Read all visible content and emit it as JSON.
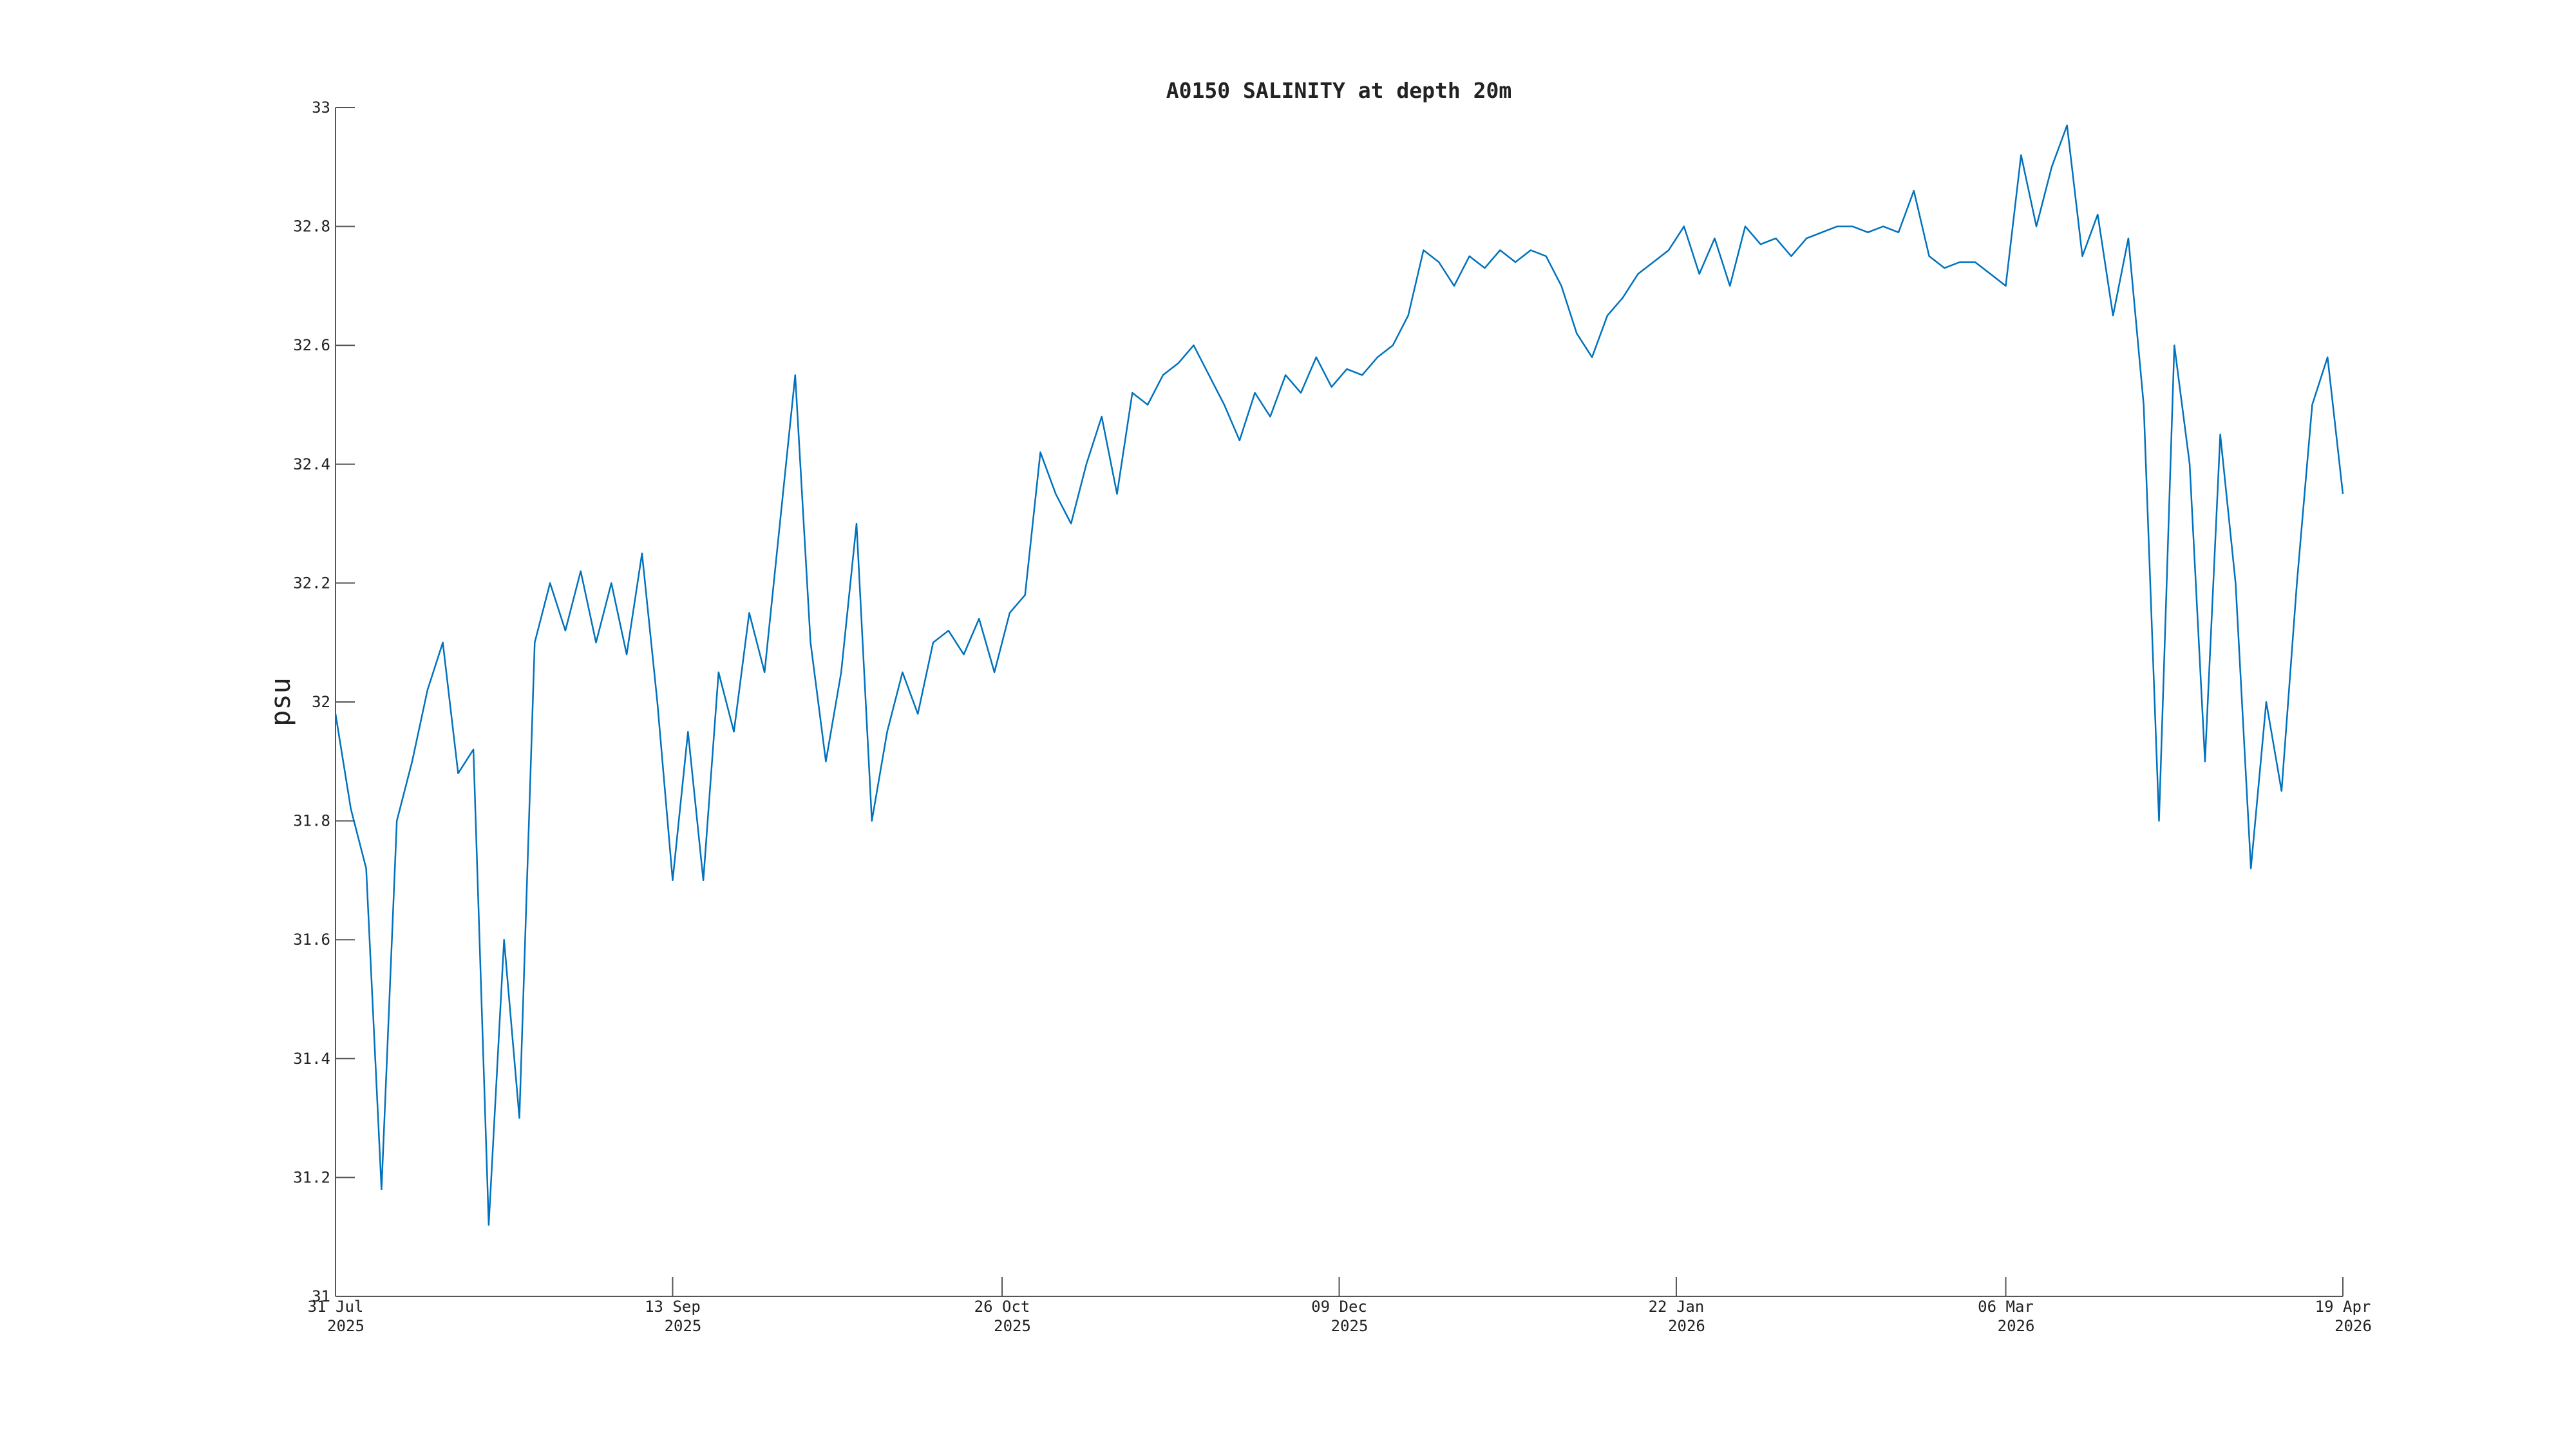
{
  "chart_data": {
    "type": "line",
    "title": "A0150 SALINITY at depth 20m",
    "ylabel": "psu",
    "xlim": [
      "2025-07-31",
      "2026-04-19"
    ],
    "xticks": [
      {
        "value": "2025-07-31",
        "label": [
          "31 Jul",
          "2025"
        ]
      },
      {
        "value": "2025-09-13",
        "label": [
          "13 Sep",
          "2025"
        ]
      },
      {
        "value": "2025-10-26",
        "label": [
          "26 Oct",
          "2025"
        ]
      },
      {
        "value": "2025-12-09",
        "label": [
          "09 Dec",
          "2025"
        ]
      },
      {
        "value": "2026-01-22",
        "label": [
          "22 Jan",
          "2026"
        ]
      },
      {
        "value": "2026-03-06",
        "label": [
          "06 Mar",
          "2026"
        ]
      },
      {
        "value": "2026-04-19",
        "label": [
          "19 Apr",
          "2026"
        ]
      }
    ],
    "ylim": [
      31,
      33
    ],
    "yticks": [
      31,
      31.2,
      31.4,
      31.6,
      31.8,
      32,
      32.2,
      32.4,
      32.6,
      32.8,
      33
    ],
    "x": [
      "2025-07-31",
      "2025-08-02",
      "2025-08-04",
      "2025-08-06",
      "2025-08-08",
      "2025-08-10",
      "2025-08-12",
      "2025-08-14",
      "2025-08-16",
      "2025-08-18",
      "2025-08-20",
      "2025-08-22",
      "2025-08-24",
      "2025-08-26",
      "2025-08-28",
      "2025-08-30",
      "2025-09-01",
      "2025-09-03",
      "2025-09-05",
      "2025-09-07",
      "2025-09-09",
      "2025-09-11",
      "2025-09-13",
      "2025-09-15",
      "2025-09-17",
      "2025-09-19",
      "2025-09-21",
      "2025-09-23",
      "2025-09-25",
      "2025-09-27",
      "2025-09-29",
      "2025-10-01",
      "2025-10-03",
      "2025-10-05",
      "2025-10-07",
      "2025-10-09",
      "2025-10-11",
      "2025-10-13",
      "2025-10-15",
      "2025-10-17",
      "2025-10-19",
      "2025-10-21",
      "2025-10-23",
      "2025-10-25",
      "2025-10-27",
      "2025-10-29",
      "2025-10-31",
      "2025-11-02",
      "2025-11-04",
      "2025-11-06",
      "2025-11-08",
      "2025-11-10",
      "2025-11-12",
      "2025-11-14",
      "2025-11-16",
      "2025-11-18",
      "2025-11-20",
      "2025-11-22",
      "2025-11-24",
      "2025-11-26",
      "2025-11-28",
      "2025-11-30",
      "2025-12-02",
      "2025-12-04",
      "2025-12-06",
      "2025-12-08",
      "2025-12-10",
      "2025-12-12",
      "2025-12-14",
      "2025-12-16",
      "2025-12-18",
      "2025-12-20",
      "2025-12-22",
      "2025-12-24",
      "2025-12-26",
      "2025-12-28",
      "2025-12-30",
      "2026-01-01",
      "2026-01-03",
      "2026-01-05",
      "2026-01-07",
      "2026-01-09",
      "2026-01-11",
      "2026-01-13",
      "2026-01-15",
      "2026-01-17",
      "2026-01-19",
      "2026-01-21",
      "2026-01-23",
      "2026-01-25",
      "2026-01-27",
      "2026-01-29",
      "2026-01-31",
      "2026-02-02",
      "2026-02-04",
      "2026-02-06",
      "2026-02-08",
      "2026-02-10",
      "2026-02-12",
      "2026-02-14",
      "2026-02-16",
      "2026-02-18",
      "2026-02-20",
      "2026-02-22",
      "2026-02-24",
      "2026-02-26",
      "2026-02-28",
      "2026-03-02",
      "2026-03-04",
      "2026-03-06",
      "2026-03-08",
      "2026-03-10",
      "2026-03-12",
      "2026-03-14",
      "2026-03-16",
      "2026-03-18",
      "2026-03-20",
      "2026-03-22",
      "2026-03-24",
      "2026-03-26",
      "2026-03-28",
      "2026-03-30",
      "2026-04-01",
      "2026-04-03",
      "2026-04-05",
      "2026-04-07",
      "2026-04-09",
      "2026-04-11",
      "2026-04-13",
      "2026-04-15",
      "2026-04-17",
      "2026-04-19"
    ],
    "series": [
      {
        "name": "salinity",
        "color": "#0072bd",
        "values": [
          31.98,
          31.82,
          31.72,
          31.18,
          31.8,
          31.9,
          32.02,
          32.1,
          31.88,
          31.92,
          31.12,
          31.6,
          31.3,
          32.1,
          32.2,
          32.12,
          32.22,
          32.1,
          32.2,
          32.08,
          32.25,
          32.0,
          31.7,
          31.95,
          31.7,
          32.05,
          31.95,
          32.15,
          32.05,
          32.3,
          32.55,
          32.1,
          31.9,
          32.05,
          32.3,
          31.8,
          31.95,
          32.05,
          31.98,
          32.1,
          32.12,
          32.08,
          32.14,
          32.05,
          32.15,
          32.18,
          32.42,
          32.35,
          32.3,
          32.4,
          32.48,
          32.35,
          32.52,
          32.5,
          32.55,
          32.57,
          32.6,
          32.55,
          32.5,
          32.44,
          32.52,
          32.48,
          32.55,
          32.52,
          32.58,
          32.53,
          32.56,
          32.55,
          32.58,
          32.6,
          32.65,
          32.76,
          32.74,
          32.7,
          32.75,
          32.73,
          32.76,
          32.74,
          32.76,
          32.75,
          32.7,
          32.62,
          32.58,
          32.65,
          32.68,
          32.72,
          32.74,
          32.76,
          32.8,
          32.72,
          32.78,
          32.7,
          32.8,
          32.77,
          32.78,
          32.75,
          32.78,
          32.79,
          32.8,
          32.8,
          32.79,
          32.8,
          32.79,
          32.86,
          32.75,
          32.73,
          32.74,
          32.74,
          32.72,
          32.7,
          32.92,
          32.8,
          32.9,
          32.97,
          32.75,
          32.82,
          32.65,
          32.78,
          32.5,
          31.8,
          32.6,
          32.4,
          31.9,
          32.45,
          32.2,
          31.72,
          32.0,
          31.85,
          32.2,
          32.5,
          32.58,
          32.35
        ]
      }
    ]
  }
}
